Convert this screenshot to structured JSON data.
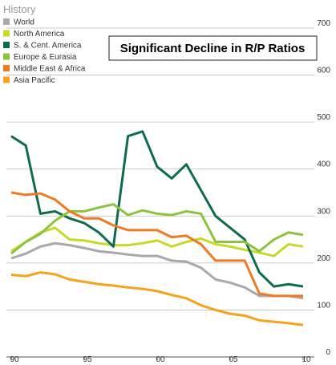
{
  "chart_data": {
    "type": "line",
    "title": "History",
    "annotation": "Significant Decline in R/P Ratios",
    "x": [
      1990,
      1991,
      1992,
      1993,
      1994,
      1995,
      1996,
      1997,
      1998,
      1999,
      2000,
      2001,
      2002,
      2003,
      2004,
      2005,
      2006,
      2007,
      2008,
      2009,
      2010
    ],
    "xlim": [
      1990,
      2010
    ],
    "xticks": [
      {
        "value": 1990,
        "label": "90"
      },
      {
        "value": 1995,
        "label": "95"
      },
      {
        "value": 2000,
        "label": "00"
      },
      {
        "value": 2005,
        "label": "05"
      },
      {
        "value": 2010,
        "label": "10"
      }
    ],
    "ylim": [
      0,
      700
    ],
    "yticks": [
      0,
      100,
      200,
      300,
      400,
      500,
      600,
      700
    ],
    "grid": true,
    "series": [
      {
        "name": "World",
        "color": "#a7a9ac",
        "values": [
          210,
          220,
          235,
          242,
          238,
          232,
          225,
          222,
          218,
          215,
          215,
          205,
          203,
          190,
          165,
          158,
          148,
          130,
          130,
          130,
          125
        ]
      },
      {
        "name": "North America",
        "color": "#c8d92a",
        "values": [
          225,
          245,
          265,
          275,
          250,
          248,
          242,
          238,
          238,
          242,
          248,
          235,
          245,
          252,
          240,
          235,
          228,
          222,
          215,
          240,
          235
        ]
      },
      {
        "name": "S. & Cent. America",
        "color": "#0f6b4f",
        "values": [
          470,
          450,
          305,
          310,
          295,
          285,
          265,
          235,
          470,
          480,
          405,
          380,
          410,
          355,
          300,
          275,
          250,
          180,
          150,
          155,
          150
        ]
      },
      {
        "name": "Europe & Eurasia",
        "color": "#8cc43f",
        "values": [
          220,
          245,
          262,
          290,
          310,
          310,
          318,
          325,
          302,
          312,
          305,
          302,
          310,
          305,
          245,
          245,
          245,
          225,
          250,
          265,
          260
        ]
      },
      {
        "name": "Middle East & Africa",
        "color": "#f07a22",
        "values": [
          350,
          345,
          348,
          335,
          310,
          295,
          295,
          280,
          270,
          270,
          270,
          255,
          258,
          240,
          205,
          205,
          205,
          135,
          130,
          130,
          130
        ]
      },
      {
        "name": "Asia Pacific",
        "color": "#f9a11b",
        "values": [
          175,
          172,
          180,
          176,
          165,
          160,
          155,
          152,
          148,
          145,
          140,
          132,
          125,
          110,
          100,
          92,
          88,
          78,
          75,
          72,
          68
        ]
      }
    ]
  }
}
